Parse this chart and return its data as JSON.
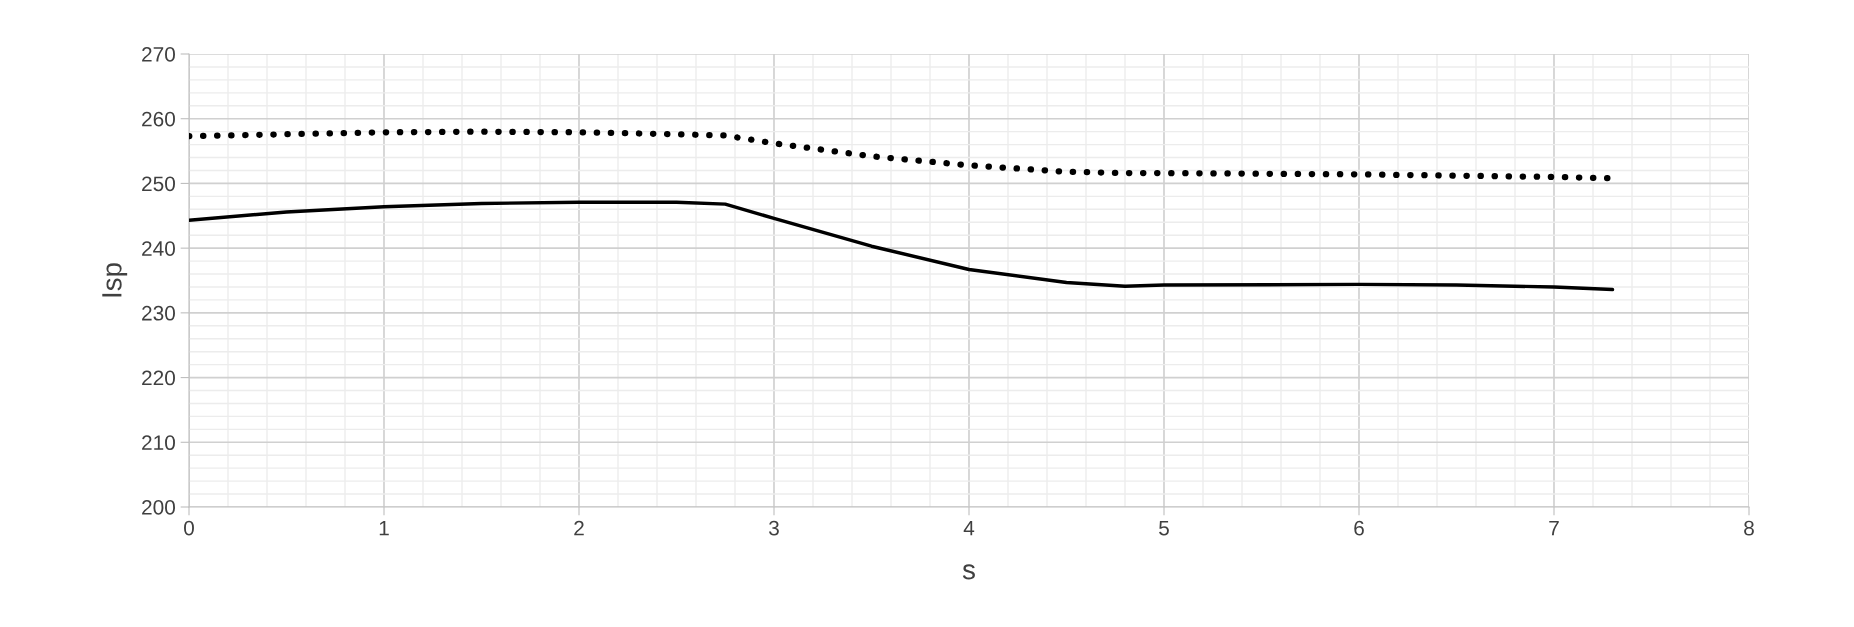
{
  "chart_data": {
    "type": "line",
    "xlabel": "s",
    "ylabel": "Isp",
    "xlim": [
      0,
      8
    ],
    "xticks": [
      0,
      1,
      2,
      3,
      4,
      5,
      6,
      7,
      8
    ],
    "ylim": [
      200,
      270
    ],
    "yticks": [
      200,
      210,
      220,
      230,
      240,
      250,
      260,
      270
    ],
    "grid": true,
    "marker": "none",
    "series": [
      {
        "color": "#000000",
        "line_style": "dotted",
        "x": [
          0,
          0.5,
          1,
          1.5,
          2,
          2.5,
          2.75,
          3,
          3.5,
          4,
          4.5,
          4.8,
          5,
          6,
          7,
          7.3
        ],
        "values": [
          257.3,
          257.6,
          257.9,
          258.0,
          257.9,
          257.6,
          257.4,
          256.2,
          254.2,
          252.8,
          251.8,
          251.6,
          251.6,
          251.4,
          251.0,
          250.8
        ]
      },
      {
        "color": "#000000",
        "line_style": "solid",
        "x": [
          0,
          0.5,
          1,
          1.5,
          2,
          2.5,
          2.75,
          3,
          3.5,
          4,
          4.5,
          4.8,
          5,
          6,
          6.5,
          7,
          7.3
        ],
        "values": [
          244.3,
          245.6,
          246.4,
          246.9,
          247.1,
          247.1,
          246.8,
          244.6,
          240.3,
          236.7,
          234.7,
          234.1,
          234.3,
          234.4,
          234.3,
          234.0,
          233.6
        ]
      }
    ]
  }
}
